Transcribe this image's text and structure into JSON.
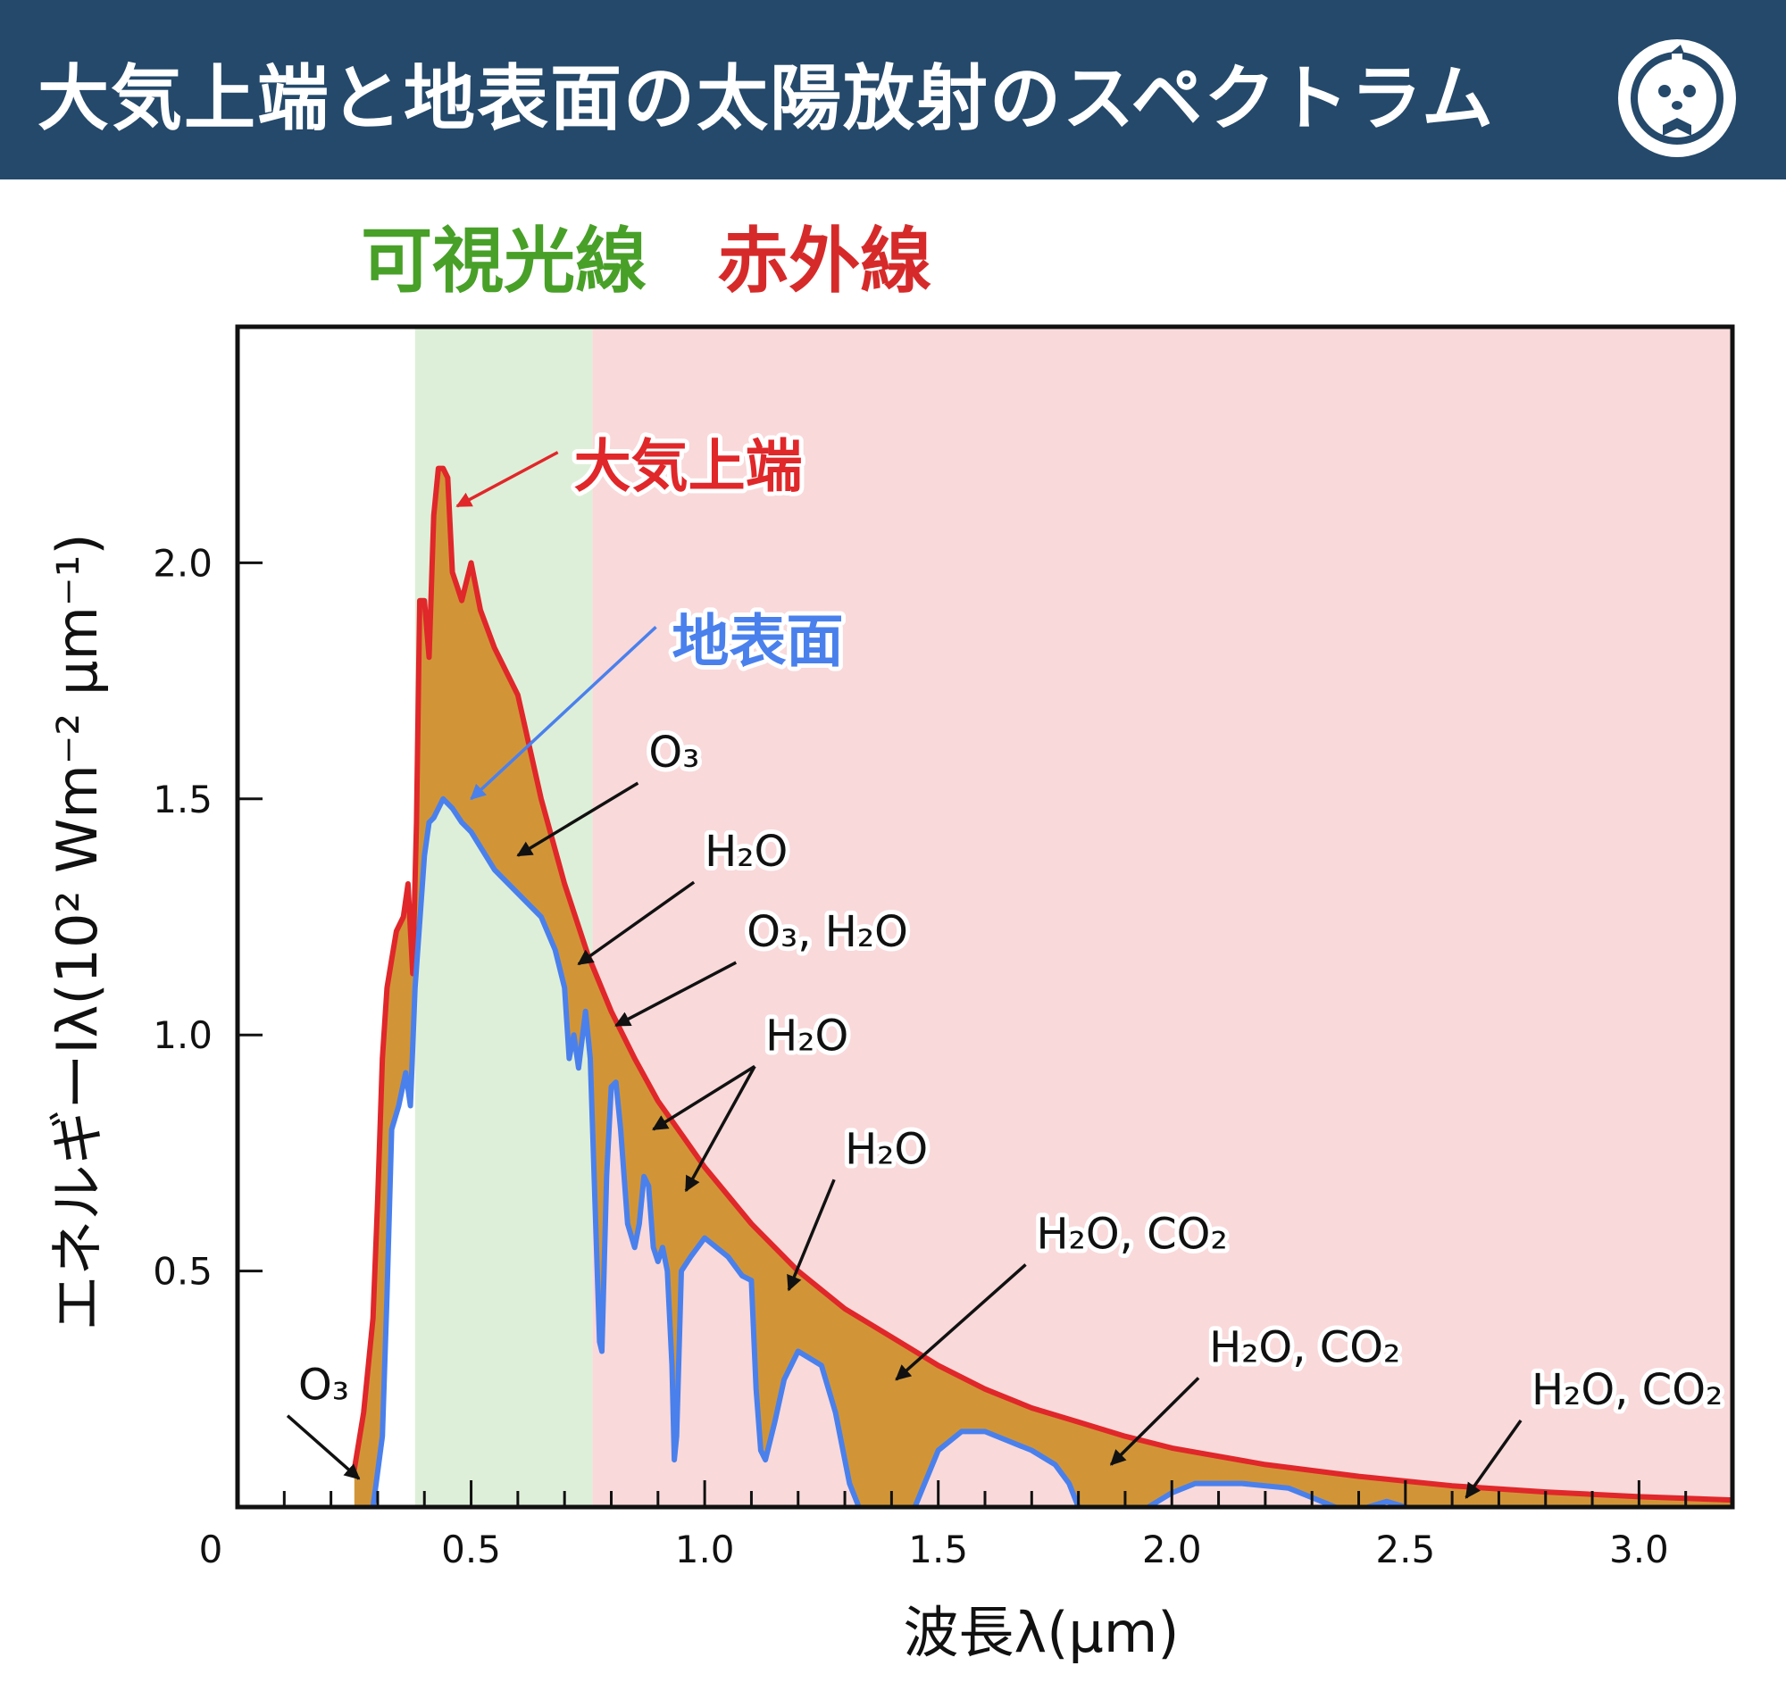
{
  "header": {
    "title": "大気上端と地表面の太陽放射のスペクトラム",
    "logo_icon": "mascot-face-icon"
  },
  "chart_data": {
    "type": "line",
    "regions": [
      {
        "label": "可視光線",
        "x_start": 0.38,
        "x_end": 0.76,
        "color": "#48a028",
        "fill": "#deefd9"
      },
      {
        "label": "赤外線",
        "x_start": 0.76,
        "x_end": 3.2,
        "color": "#d62a2a",
        "fill": "#f9d9da"
      }
    ],
    "xlabel": "波長λ(μm)",
    "ylabel": "エネルギーIλ(10² Wm⁻² μm⁻¹)",
    "xlim": [
      0,
      3.2
    ],
    "ylim": [
      0,
      2.5
    ],
    "x_ticks": [
      {
        "value": 0,
        "label": "0"
      },
      {
        "value": 0.5,
        "label": "0.5"
      },
      {
        "value": 1.0,
        "label": "1.0"
      },
      {
        "value": 1.5,
        "label": "1.5"
      },
      {
        "value": 2.0,
        "label": "2.0"
      },
      {
        "value": 2.5,
        "label": "2.5"
      },
      {
        "value": 3.0,
        "label": "3.0"
      }
    ],
    "x_minor_step": 0.1,
    "y_ticks": [
      {
        "value": 0.5,
        "label": "0.5"
      },
      {
        "value": 1.0,
        "label": "1.0"
      },
      {
        "value": 1.5,
        "label": "1.5"
      },
      {
        "value": 2.0,
        "label": "2.0"
      }
    ],
    "absorption_fill_color": "#d19538",
    "series": [
      {
        "name": "大気上端",
        "color": "#e0272a",
        "points": [
          [
            0.25,
            0.08
          ],
          [
            0.27,
            0.2
          ],
          [
            0.29,
            0.4
          ],
          [
            0.3,
            0.65
          ],
          [
            0.31,
            0.95
          ],
          [
            0.32,
            1.1
          ],
          [
            0.33,
            1.16
          ],
          [
            0.34,
            1.22
          ],
          [
            0.355,
            1.25
          ],
          [
            0.365,
            1.32
          ],
          [
            0.375,
            1.13
          ],
          [
            0.383,
            1.45
          ],
          [
            0.39,
            1.92
          ],
          [
            0.4,
            1.92
          ],
          [
            0.41,
            1.8
          ],
          [
            0.42,
            2.1
          ],
          [
            0.43,
            2.2
          ],
          [
            0.44,
            2.2
          ],
          [
            0.45,
            2.18
          ],
          [
            0.46,
            1.98
          ],
          [
            0.47,
            1.95
          ],
          [
            0.48,
            1.92
          ],
          [
            0.49,
            1.96
          ],
          [
            0.5,
            2.0
          ],
          [
            0.52,
            1.9
          ],
          [
            0.55,
            1.82
          ],
          [
            0.6,
            1.72
          ],
          [
            0.65,
            1.5
          ],
          [
            0.7,
            1.32
          ],
          [
            0.75,
            1.17
          ],
          [
            0.8,
            1.05
          ],
          [
            0.85,
            0.95
          ],
          [
            0.9,
            0.86
          ],
          [
            0.95,
            0.79
          ],
          [
            1.0,
            0.72
          ],
          [
            1.1,
            0.6
          ],
          [
            1.2,
            0.5
          ],
          [
            1.3,
            0.42
          ],
          [
            1.4,
            0.36
          ],
          [
            1.5,
            0.3
          ],
          [
            1.6,
            0.25
          ],
          [
            1.7,
            0.21
          ],
          [
            1.8,
            0.18
          ],
          [
            1.9,
            0.15
          ],
          [
            2.0,
            0.125
          ],
          [
            2.2,
            0.09
          ],
          [
            2.4,
            0.065
          ],
          [
            2.6,
            0.045
          ],
          [
            2.8,
            0.032
          ],
          [
            3.0,
            0.022
          ],
          [
            3.2,
            0.015
          ]
        ]
      },
      {
        "name": "地表面",
        "color": "#4a80ec",
        "points": [
          [
            0.29,
            0.0
          ],
          [
            0.31,
            0.15
          ],
          [
            0.32,
            0.45
          ],
          [
            0.33,
            0.8
          ],
          [
            0.345,
            0.85
          ],
          [
            0.36,
            0.92
          ],
          [
            0.37,
            0.85
          ],
          [
            0.38,
            1.1
          ],
          [
            0.4,
            1.38
          ],
          [
            0.41,
            1.45
          ],
          [
            0.42,
            1.46
          ],
          [
            0.44,
            1.5
          ],
          [
            0.46,
            1.48
          ],
          [
            0.48,
            1.45
          ],
          [
            0.5,
            1.43
          ],
          [
            0.55,
            1.35
          ],
          [
            0.6,
            1.3
          ],
          [
            0.65,
            1.25
          ],
          [
            0.68,
            1.18
          ],
          [
            0.7,
            1.1
          ],
          [
            0.71,
            0.95
          ],
          [
            0.72,
            1.0
          ],
          [
            0.73,
            0.93
          ],
          [
            0.745,
            1.05
          ],
          [
            0.755,
            0.95
          ],
          [
            0.77,
            0.5
          ],
          [
            0.775,
            0.35
          ],
          [
            0.78,
            0.33
          ],
          [
            0.79,
            0.7
          ],
          [
            0.8,
            0.89
          ],
          [
            0.81,
            0.9
          ],
          [
            0.82,
            0.8
          ],
          [
            0.835,
            0.6
          ],
          [
            0.85,
            0.55
          ],
          [
            0.86,
            0.6
          ],
          [
            0.87,
            0.7
          ],
          [
            0.88,
            0.68
          ],
          [
            0.89,
            0.55
          ],
          [
            0.9,
            0.52
          ],
          [
            0.91,
            0.55
          ],
          [
            0.92,
            0.5
          ],
          [
            0.93,
            0.3
          ],
          [
            0.935,
            0.1
          ],
          [
            0.94,
            0.15
          ],
          [
            0.95,
            0.5
          ],
          [
            0.97,
            0.53
          ],
          [
            1.0,
            0.57
          ],
          [
            1.05,
            0.53
          ],
          [
            1.08,
            0.49
          ],
          [
            1.1,
            0.48
          ],
          [
            1.11,
            0.25
          ],
          [
            1.12,
            0.12
          ],
          [
            1.13,
            0.1
          ],
          [
            1.15,
            0.18
          ],
          [
            1.17,
            0.27
          ],
          [
            1.2,
            0.33
          ],
          [
            1.25,
            0.3
          ],
          [
            1.28,
            0.2
          ],
          [
            1.31,
            0.05
          ],
          [
            1.33,
            0.0
          ]
        ]
      },
      {
        "name": "",
        "color": "#4a80ec",
        "points": [
          [
            1.45,
            0.0
          ],
          [
            1.5,
            0.12
          ],
          [
            1.55,
            0.16
          ],
          [
            1.6,
            0.16
          ],
          [
            1.65,
            0.14
          ],
          [
            1.7,
            0.12
          ],
          [
            1.75,
            0.09
          ],
          [
            1.78,
            0.05
          ],
          [
            1.8,
            0.0
          ]
        ]
      },
      {
        "name": "",
        "color": "#4a80ec",
        "points": [
          [
            1.95,
            0.0
          ],
          [
            2.0,
            0.03
          ],
          [
            2.05,
            0.05
          ],
          [
            2.15,
            0.05
          ],
          [
            2.25,
            0.04
          ],
          [
            2.3,
            0.02
          ],
          [
            2.35,
            0.0
          ]
        ]
      },
      {
        "name": "",
        "color": "#4a80ec",
        "points": [
          [
            2.42,
            0.0
          ],
          [
            2.46,
            0.012
          ],
          [
            2.5,
            0.0
          ]
        ]
      }
    ],
    "series_labels": [
      {
        "text": "大気上端",
        "color": "#e0272a",
        "point_to": [
          0.47,
          2.12
        ],
        "label_at": [
          0.72,
          2.2
        ]
      },
      {
        "text": "地表面",
        "color": "#4a80ec",
        "point_to": [
          0.5,
          1.5
        ],
        "label_at": [
          0.93,
          1.83
        ]
      }
    ],
    "annotations": [
      {
        "text": "O₃",
        "point_to": [
          0.26,
          0.06
        ],
        "label_at": [
          0.13,
          0.22
        ]
      },
      {
        "text": "O₃",
        "point_to": [
          0.6,
          1.38
        ],
        "label_at": [
          0.88,
          1.56
        ]
      },
      {
        "text": "H₂O",
        "point_to": [
          0.73,
          1.15
        ],
        "label_at": [
          1.0,
          1.35
        ]
      },
      {
        "text": "O₃, H₂O",
        "point_to": [
          0.81,
          1.02
        ],
        "label_at": [
          1.09,
          1.18
        ]
      },
      {
        "text": "H₂O",
        "point_to": [
          0.89,
          0.8
        ],
        "label_at": [
          1.13,
          0.96
        ]
      },
      {
        "text": "",
        "point_to": [
          0.96,
          0.67
        ],
        "label_at": [
          1.13,
          0.96
        ]
      },
      {
        "text": "H₂O",
        "point_to": [
          1.18,
          0.46
        ],
        "label_at": [
          1.3,
          0.72
        ]
      },
      {
        "text": "H₂O, CO₂",
        "point_to": [
          1.41,
          0.27
        ],
        "label_at": [
          1.71,
          0.54
        ]
      },
      {
        "text": "H₂O, CO₂",
        "point_to": [
          1.87,
          0.09
        ],
        "label_at": [
          2.08,
          0.3
        ]
      },
      {
        "text": "H₂O, CO₂",
        "point_to": [
          2.63,
          0.02
        ],
        "label_at": [
          2.77,
          0.21
        ]
      }
    ]
  }
}
